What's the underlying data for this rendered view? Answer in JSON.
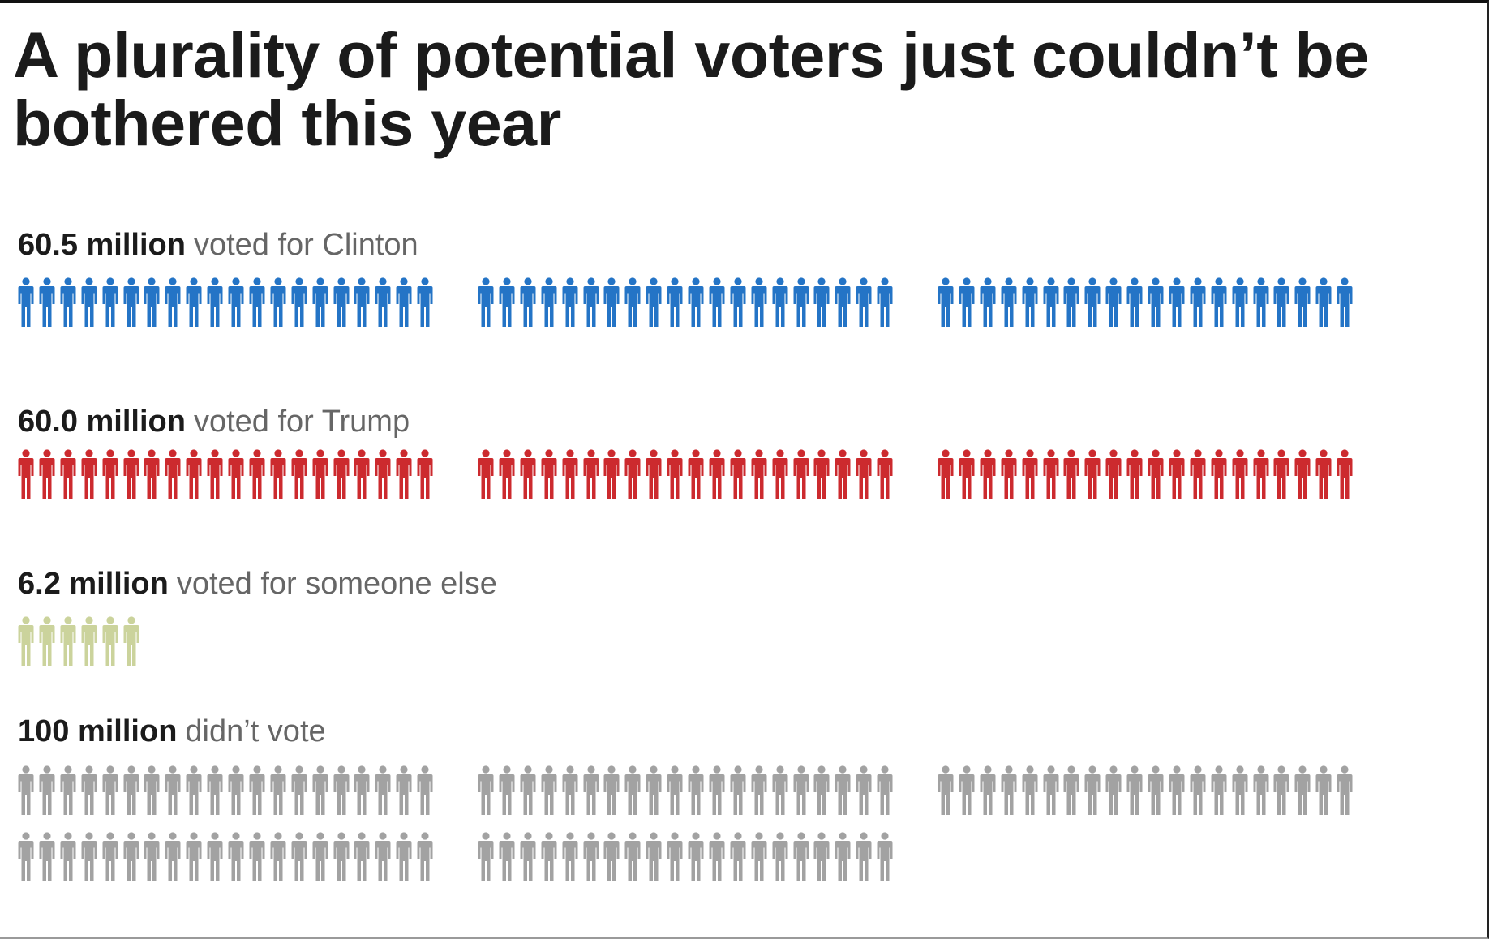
{
  "title": "A plurality of potential voters just couldn’t be bothered this year",
  "colors": {
    "clinton": "#2474c6",
    "trump": "#cc2a2e",
    "other": "#cbd39c",
    "nonvoter": "#a2a2a2"
  },
  "icon": "person-icon",
  "chart_data": {
    "type": "pictogram",
    "title": "A plurality of potential voters just couldn’t be bothered this year",
    "unit_per_icon": "1 million",
    "categories": [
      "Clinton",
      "Trump",
      "someone else",
      "didn’t vote"
    ],
    "values": [
      60.5,
      60.0,
      6.2,
      100
    ],
    "groups": [
      {
        "amount": "60.5 million",
        "desc": "voted for Clinton",
        "value": 60.5,
        "icons": 60,
        "color": "#2474c6"
      },
      {
        "amount": "60.0 million",
        "desc": "voted for Trump",
        "value": 60.0,
        "icons": 60,
        "color": "#cc2a2e"
      },
      {
        "amount": "6.2 million",
        "desc": "voted for someone else",
        "value": 6.2,
        "icons": 6,
        "color": "#cbd39c"
      },
      {
        "amount": "100 million",
        "desc": "didn’t vote",
        "value": 100,
        "icons": 100,
        "color": "#a2a2a2"
      }
    ]
  }
}
